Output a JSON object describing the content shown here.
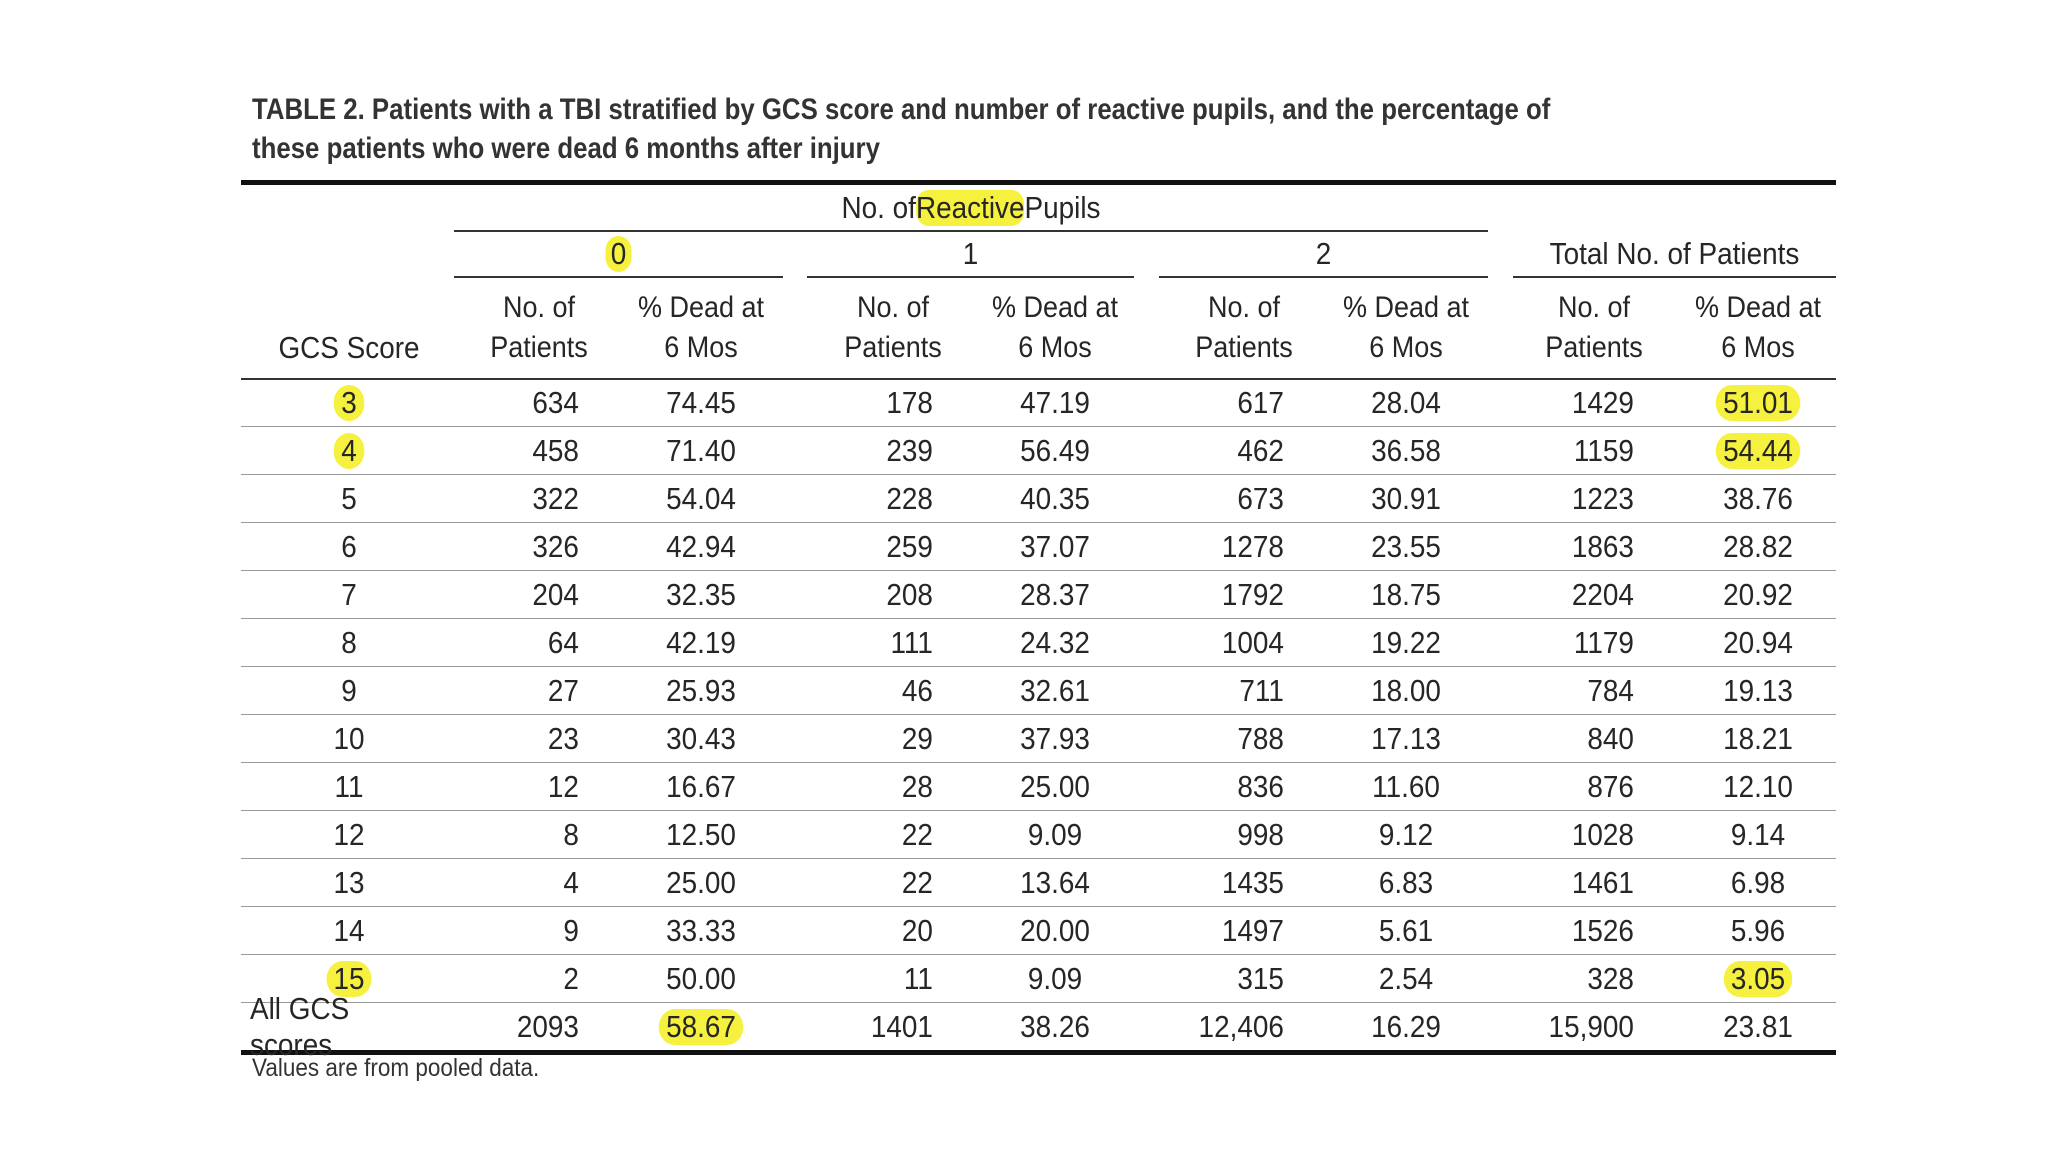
{
  "caption": "TABLE 2. Patients with a TBI stratified by GCS score and number of reactive pupils, and the percentage of these patients who were dead 6 months after injury",
  "header": {
    "spanner": {
      "before": "No. of ",
      "highlight": "Reactive",
      "after": " Pupils"
    },
    "groups": [
      "0",
      "1",
      "2",
      "Total No. of Patients"
    ],
    "gcs_label": "GCS Score",
    "col_top": [
      "No. of",
      "% Dead at",
      "No. of",
      "% Dead at",
      "No. of",
      "% Dead at",
      "No. of",
      "% Dead at"
    ],
    "col_bottom": [
      "Patients",
      "6 Mos",
      "Patients",
      "6 Mos",
      "Patients",
      "6 Mos",
      "Patients",
      "6 Mos"
    ]
  },
  "rows": [
    {
      "gcs": "3",
      "cells": [
        "634",
        "74.45",
        "178",
        "47.19",
        "617",
        "28.04",
        "1429",
        "51.01"
      ]
    },
    {
      "gcs": "4",
      "cells": [
        "458",
        "71.40",
        "239",
        "56.49",
        "462",
        "36.58",
        "1159",
        "54.44"
      ]
    },
    {
      "gcs": "5",
      "cells": [
        "322",
        "54.04",
        "228",
        "40.35",
        "673",
        "30.91",
        "1223",
        "38.76"
      ]
    },
    {
      "gcs": "6",
      "cells": [
        "326",
        "42.94",
        "259",
        "37.07",
        "1278",
        "23.55",
        "1863",
        "28.82"
      ]
    },
    {
      "gcs": "7",
      "cells": [
        "204",
        "32.35",
        "208",
        "28.37",
        "1792",
        "18.75",
        "2204",
        "20.92"
      ]
    },
    {
      "gcs": "8",
      "cells": [
        "64",
        "42.19",
        "111",
        "24.32",
        "1004",
        "19.22",
        "1179",
        "20.94"
      ]
    },
    {
      "gcs": "9",
      "cells": [
        "27",
        "25.93",
        "46",
        "32.61",
        "711",
        "18.00",
        "784",
        "19.13"
      ]
    },
    {
      "gcs": "10",
      "cells": [
        "23",
        "30.43",
        "29",
        "37.93",
        "788",
        "17.13",
        "840",
        "18.21"
      ]
    },
    {
      "gcs": "11",
      "cells": [
        "12",
        "16.67",
        "28",
        "25.00",
        "836",
        "11.60",
        "876",
        "12.10"
      ]
    },
    {
      "gcs": "12",
      "cells": [
        "8",
        "12.50",
        "22",
        "9.09",
        "998",
        "9.12",
        "1028",
        "9.14"
      ]
    },
    {
      "gcs": "13",
      "cells": [
        "4",
        "25.00",
        "22",
        "13.64",
        "1435",
        "6.83",
        "1461",
        "6.98"
      ]
    },
    {
      "gcs": "14",
      "cells": [
        "9",
        "33.33",
        "20",
        "20.00",
        "1497",
        "5.61",
        "1526",
        "5.96"
      ]
    },
    {
      "gcs": "15",
      "cells": [
        "2",
        "50.00",
        "11",
        "9.09",
        "315",
        "2.54",
        "328",
        "3.05"
      ]
    },
    {
      "gcs": "All GCS scores",
      "cells": [
        "2093",
        "58.67",
        "1401",
        "38.26",
        "12,406",
        "16.29",
        "15,900",
        "23.81"
      ]
    }
  ],
  "highlight_color": "#f6f13e",
  "footnote": "Values are from pooled data."
}
